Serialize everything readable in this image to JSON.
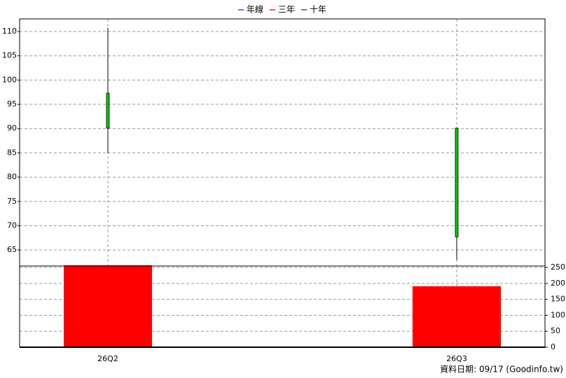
{
  "chart_data": [
    {
      "type": "candlestick",
      "legend": [
        {
          "name": "年線",
          "color": "#1f5fd6"
        },
        {
          "name": "三年",
          "color": "#e02020"
        },
        {
          "name": "十年",
          "color": "#8a2a8a"
        }
      ],
      "open": [
        97.3,
        90.1
      ],
      "high": [
        110.7,
        90.1
      ],
      "low": [
        84.9,
        62.9
      ],
      "close": [
        90.1,
        67.7
      ],
      "color": "#00cc00",
      "ylim": [
        61.7,
        112.6
      ],
      "yticks": [
        65,
        70,
        75,
        80,
        85,
        90,
        95,
        100,
        105,
        110
      ],
      "grid": true
    },
    {
      "type": "bar",
      "categories": [
        "26Q2",
        "26Q3"
      ],
      "values": [
        257,
        191
      ],
      "color": "#ff0000",
      "ylim": [
        0,
        259
      ],
      "yticks": [
        0,
        50,
        100,
        150,
        200,
        250
      ],
      "grid": true
    }
  ],
  "footer": "資料日期: 09/17  (Goodinfo.tw)"
}
